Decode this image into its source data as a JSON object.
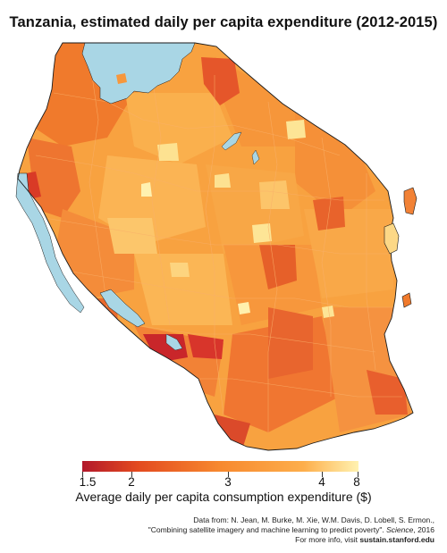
{
  "title": "Tanzania, estimated daily per capita expenditure (2012-2015)",
  "legend": {
    "ticks": [
      "1.5",
      "2",
      "3",
      "4",
      "8"
    ],
    "caption": "Average daily per capita consumption expenditure ($)",
    "colors": {
      "low": "#b2182b",
      "mid_low": "#e34a1f",
      "mid": "#f7892f",
      "mid_high": "#fdae4b",
      "high": "#fff2b0"
    }
  },
  "map": {
    "water_color": "#a9d6e5",
    "border_color": "#1a1a1a"
  },
  "credits": {
    "line1": "Data from: N. Jean, M. Burke, M. Xie, W.M. Davis, D. Lobell, S. Ermon.,",
    "line2_quote": "\"Combining satellite imagery and machine learning to predict poverty\".",
    "line2_journal": "Science",
    "line2_year": ", 2016",
    "line3_prefix": "For more info, visit ",
    "line3_link": "sustain.stanford.edu"
  }
}
